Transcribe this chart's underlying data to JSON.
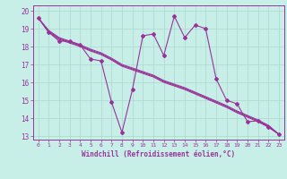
{
  "xlabel": "Windchill (Refroidissement éolien,°C)",
  "background_color": "#c8eee8",
  "grid_color": "#aad8cc",
  "line_color": "#993399",
  "x_hours": [
    0,
    1,
    2,
    3,
    4,
    5,
    6,
    7,
    8,
    9,
    10,
    11,
    12,
    13,
    14,
    15,
    16,
    17,
    18,
    19,
    20,
    21,
    22,
    23
  ],
  "windchill": [
    19.6,
    18.8,
    18.3,
    18.3,
    18.1,
    17.3,
    17.2,
    14.9,
    13.2,
    15.6,
    18.6,
    18.7,
    17.5,
    19.7,
    18.5,
    19.2,
    19.0,
    16.2,
    15.0,
    14.8,
    13.8,
    13.85,
    13.5,
    13.1
  ],
  "temp_line1": [
    19.6,
    18.8,
    18.4,
    18.2,
    18.0,
    17.75,
    17.55,
    17.25,
    16.9,
    16.7,
    16.5,
    16.3,
    16.0,
    15.8,
    15.6,
    15.35,
    15.1,
    14.85,
    14.6,
    14.3,
    14.05,
    13.8,
    13.5,
    13.1
  ],
  "temp_line2": [
    19.6,
    18.85,
    18.45,
    18.25,
    18.05,
    17.8,
    17.6,
    17.3,
    16.95,
    16.75,
    16.55,
    16.35,
    16.05,
    15.85,
    15.65,
    15.4,
    15.15,
    14.9,
    14.65,
    14.35,
    14.1,
    13.85,
    13.55,
    13.1
  ],
  "temp_line3": [
    19.6,
    18.9,
    18.5,
    18.3,
    18.1,
    17.85,
    17.65,
    17.35,
    17.0,
    16.8,
    16.6,
    16.4,
    16.1,
    15.9,
    15.7,
    15.45,
    15.2,
    14.95,
    14.7,
    14.4,
    14.15,
    13.9,
    13.6,
    13.1
  ],
  "ylim": [
    12.8,
    20.3
  ],
  "xlim": [
    -0.5,
    23.5
  ],
  "yticks": [
    13,
    14,
    15,
    16,
    17,
    18,
    19,
    20
  ],
  "xticks": [
    0,
    1,
    2,
    3,
    4,
    5,
    6,
    7,
    8,
    9,
    10,
    11,
    12,
    13,
    14,
    15,
    16,
    17,
    18,
    19,
    20,
    21,
    22,
    23
  ]
}
